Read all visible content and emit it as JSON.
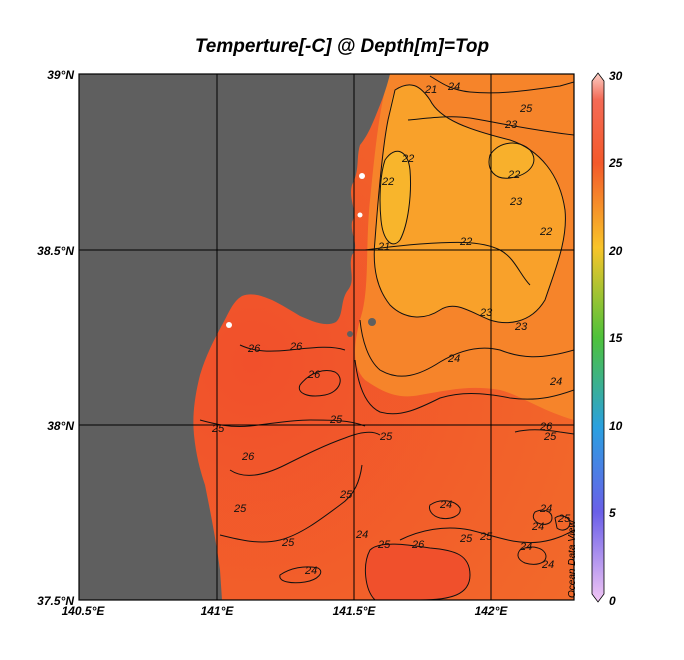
{
  "title": "Temperture[-C] @ Depth[m]=Top",
  "watermark": "Ocean Data View",
  "axes": {
    "lat_labels": [
      "39°N",
      "38.5°N",
      "38°N",
      "37.5°N"
    ],
    "lon_labels": [
      "140.5°E",
      "141°E",
      "141.5°E",
      "142°E"
    ]
  },
  "colorbar": {
    "labels": [
      "30",
      "25",
      "20",
      "15",
      "10",
      "5",
      "0"
    ],
    "min": 0,
    "max": 30
  },
  "colors": {
    "land": "#5f5f5f",
    "warm": "#f0562a",
    "mid": "#f88a2a",
    "cool": "#fba727",
    "coolest": "#f9b62b"
  },
  "chart_data": {
    "type": "heatmap",
    "title": "Temperture[-C] @ Depth[m]=Top",
    "lon_range": [
      140.5,
      142.3
    ],
    "lat_range": [
      37.5,
      39.0
    ],
    "colorbar_range": [
      0,
      30
    ],
    "contour_labels": [
      "24",
      "25",
      "23",
      "21",
      "22",
      "22",
      "23",
      "22",
      "21",
      "22",
      "22",
      "24",
      "23",
      "23",
      "24",
      "25",
      "26",
      "26",
      "26",
      "25",
      "26",
      "25",
      "25",
      "25",
      "25",
      "25",
      "24",
      "25",
      "26",
      "25",
      "24",
      "24",
      "24",
      "24",
      "24",
      "25",
      "24",
      "25",
      "26"
    ]
  }
}
